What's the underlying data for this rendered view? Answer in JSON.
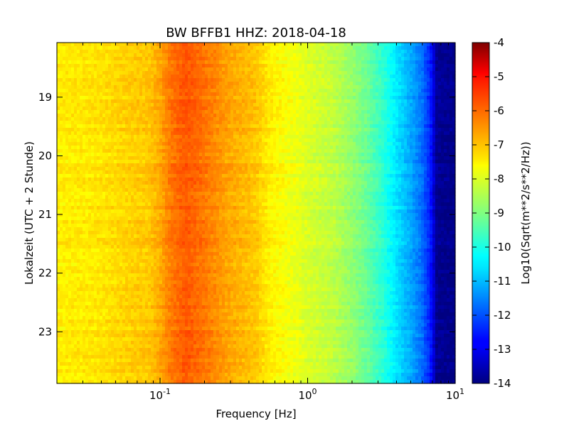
{
  "chart_data": {
    "type": "heatmap",
    "title": "BW BFFB1 HHZ: 2018-04-18",
    "xlabel": "Frequency [Hz]",
    "ylabel": "Lokalzeit (UTC + 2 Stunde)",
    "x_scale": "log",
    "xlim": [
      0.02,
      10
    ],
    "x_ticks": [
      {
        "value": 0.1,
        "base": "10",
        "exp": "-1"
      },
      {
        "value": 1,
        "base": "10",
        "exp": "0"
      },
      {
        "value": 10,
        "base": "10",
        "exp": "1"
      }
    ],
    "ylim": [
      18.07,
      23.88
    ],
    "y_inverted": true,
    "y_ticks": [
      "19",
      "20",
      "21",
      "22",
      "23"
    ],
    "y_tick_values": [
      19,
      20,
      21,
      22,
      23
    ],
    "colorbar": {
      "label": "Log10(Sqrt(m**2/s**2/Hz))",
      "range": [
        -14,
        -4
      ],
      "ticks": [
        "-4",
        "-5",
        "-6",
        "-7",
        "-8",
        "-9",
        "-10",
        "-11",
        "-12",
        "-13",
        "-14"
      ],
      "tick_values": [
        -4,
        -5,
        -6,
        -7,
        -8,
        -9,
        -10,
        -11,
        -12,
        -13,
        -14
      ],
      "colormap": "jet"
    },
    "spectrum_profile": [
      {
        "frequency": 0.02,
        "value": -7.6
      },
      {
        "frequency": 0.04,
        "value": -7.5
      },
      {
        "frequency": 0.06,
        "value": -7.3
      },
      {
        "frequency": 0.085,
        "value": -7.2
      },
      {
        "frequency": 0.1,
        "value": -6.9
      },
      {
        "frequency": 0.12,
        "value": -6.4
      },
      {
        "frequency": 0.15,
        "value": -6.1
      },
      {
        "frequency": 0.2,
        "value": -6.4
      },
      {
        "frequency": 0.3,
        "value": -6.9
      },
      {
        "frequency": 0.45,
        "value": -7.2
      },
      {
        "frequency": 0.55,
        "value": -7.6
      },
      {
        "frequency": 0.8,
        "value": -7.9
      },
      {
        "frequency": 1.0,
        "value": -8.1
      },
      {
        "frequency": 1.5,
        "value": -8.4
      },
      {
        "frequency": 2.0,
        "value": -8.8
      },
      {
        "frequency": 2.5,
        "value": -9.2
      },
      {
        "frequency": 3.2,
        "value": -9.8
      },
      {
        "frequency": 4.0,
        "value": -10.5
      },
      {
        "frequency": 5.0,
        "value": -11.1
      },
      {
        "frequency": 6.0,
        "value": -11.7
      },
      {
        "frequency": 6.8,
        "value": -12.5
      },
      {
        "frequency": 7.5,
        "value": -13.8
      },
      {
        "frequency": 10.0,
        "value": -13.9
      }
    ],
    "grid": false
  }
}
